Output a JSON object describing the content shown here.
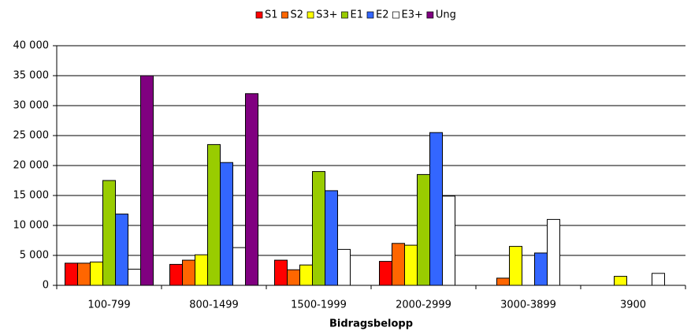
{
  "chart_data": {
    "type": "bar",
    "x_label": "Bidragsbelopp",
    "categories": [
      "100-799",
      "800-1499",
      "1500-1999",
      "2000-2999",
      "3000-3899",
      "3900"
    ],
    "series": [
      {
        "name": "S1",
        "color": "#ff0000",
        "values": [
          3700,
          3500,
          4200,
          4000,
          0,
          0
        ]
      },
      {
        "name": "S2",
        "color": "#ff6600",
        "values": [
          3700,
          4200,
          2600,
          7000,
          1200,
          0
        ]
      },
      {
        "name": "S3+",
        "color": "#ffff00",
        "values": [
          3900,
          5100,
          3400,
          6700,
          6500,
          1500
        ]
      },
      {
        "name": "E1",
        "color": "#99cc00",
        "values": [
          17500,
          23500,
          19000,
          18500,
          0,
          0
        ]
      },
      {
        "name": "E2",
        "color": "#3366ff",
        "values": [
          11900,
          20500,
          15800,
          25500,
          5400,
          0
        ]
      },
      {
        "name": "E3+",
        "color": "#ffffff",
        "values": [
          2700,
          6300,
          6000,
          14900,
          11000,
          2000
        ]
      },
      {
        "name": "Ung",
        "color": "#800080",
        "values": [
          35000,
          32000,
          0,
          0,
          0,
          0
        ]
      }
    ],
    "ylim": [
      0,
      40000
    ],
    "yticks": [
      0,
      {
        "value": 5000,
        "label": "5 000"
      },
      {
        "value": 10000,
        "label": "10 000"
      },
      {
        "value": 15000,
        "label": "15 000"
      },
      {
        "value": 20000,
        "label": "20 000"
      },
      {
        "value": 25000,
        "label": "25 000"
      },
      {
        "value": 30000,
        "label": "30 000"
      },
      {
        "value": 35000,
        "label": "35 000"
      },
      {
        "value": 40000,
        "label": "40 000"
      }
    ],
    "grid": true,
    "legend": "top"
  }
}
